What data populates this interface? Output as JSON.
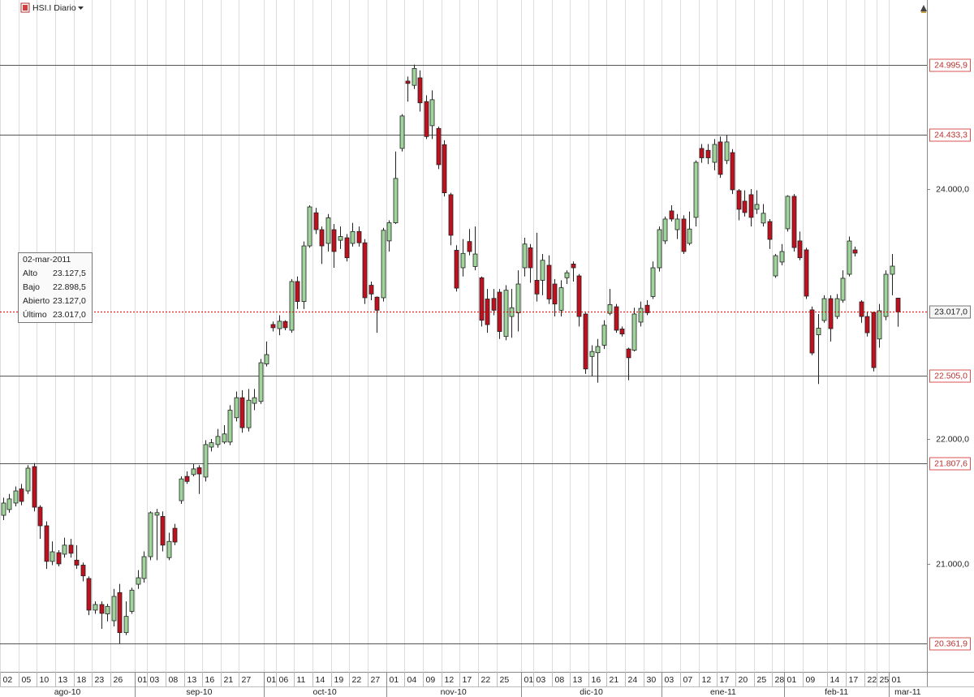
{
  "chart_data": {
    "type": "candlestick",
    "title": "HSI.I Diario",
    "categories": [
      "02",
      null,
      null,
      "05",
      null,
      null,
      "10",
      null,
      null,
      "13",
      null,
      null,
      "18",
      null,
      null,
      "23",
      null,
      null,
      "26",
      null,
      null,
      null,
      "01",
      null,
      "03",
      null,
      null,
      "08",
      null,
      null,
      "13",
      null,
      null,
      "16",
      null,
      null,
      "21",
      null,
      null,
      "27",
      null,
      null,
      null,
      "01",
      null,
      "06",
      null,
      null,
      "11",
      null,
      null,
      "14",
      null,
      null,
      "19",
      null,
      null,
      "22",
      null,
      null,
      "27",
      null,
      null,
      "01",
      null,
      null,
      "04",
      null,
      null,
      "09",
      null,
      null,
      "12",
      null,
      null,
      "17",
      null,
      null,
      "22",
      null,
      null,
      "25",
      null,
      null,
      null,
      "01",
      null,
      "03",
      null,
      null,
      "08",
      null,
      null,
      "13",
      null,
      null,
      "16",
      null,
      null,
      "21",
      null,
      null,
      "24",
      null,
      null,
      "30",
      null,
      null,
      "03",
      null,
      null,
      "07",
      null,
      null,
      "12",
      null,
      null,
      "17",
      null,
      null,
      "20",
      null,
      null,
      "25",
      null,
      null,
      "28",
      null,
      "01",
      null,
      null,
      "09",
      null,
      null,
      null,
      "14",
      null,
      null,
      "17",
      null,
      null,
      "22",
      null,
      "25",
      null,
      "01",
      null
    ],
    "months": [
      "ago-10",
      "sep-10",
      "oct-10",
      "nov-10",
      "dic-10",
      "ene-11",
      "feb-11",
      "mar-11"
    ],
    "open": [
      21389,
      21435,
      21487,
      21600,
      21584,
      21779,
      21454,
      21305,
      21020,
      21090,
      21078,
      21150,
      21030,
      20990,
      20883,
      20630,
      20675,
      20600,
      20545,
      20770,
      20450,
      20620,
      20837,
      20883,
      21058,
      21390,
      21380,
      21050,
      21285,
      21506,
      21700,
      21715,
      21770,
      21695,
      21935,
      21955,
      21975,
      21975,
      22170,
      22330,
      22090,
      22285,
      22300,
      22600,
      22916,
      22883,
      22940,
      22870,
      23260,
      23100,
      23545,
      23810,
      23675,
      23565,
      23675,
      23590,
      23610,
      23565,
      23660,
      23570,
      23230,
      23135,
      23130,
      23585,
      23730,
      24325,
      24864,
      24830,
      24890,
      24700,
      24507,
      24485,
      24355,
      23955,
      23510,
      23370,
      23580,
      23380,
      23290,
      23120,
      23125,
      23175,
      22820,
      22980,
      23010,
      23370,
      23530,
      23270,
      23270,
      23390,
      23240,
      23030,
      23290,
      23400,
      23305,
      23000,
      22660,
      22690,
      22750,
      23005,
      23058,
      22880,
      22720,
      22710,
      22935,
      23070,
      23140,
      23370,
      23585,
      23825,
      23675,
      23760,
      23565,
      23773,
      24325,
      24310,
      24214,
      24377,
      24228,
      24292,
      23987,
      23903,
      23955,
      23838,
      23728,
      23740,
      23305,
      23416,
      23682,
      23942,
      23585,
      23513,
      23033,
      22834,
      22948,
      23123,
      22980,
      23110,
      23318,
      23513,
      23097,
      22980,
      23013,
      22800,
      22980,
      23318,
      23127.0
    ],
    "high": [
      21530,
      21560,
      21620,
      21640,
      21790,
      21807.6,
      21470,
      21340,
      21180,
      21110,
      21210,
      21200,
      21150,
      21010,
      20900,
      20700,
      20700,
      20680,
      20800,
      20840,
      20700,
      20810,
      20950,
      21100,
      21420,
      21440,
      21420,
      21250,
      21320,
      21700,
      21740,
      21800,
      21790,
      21990,
      22000,
      22080,
      22110,
      22270,
      22380,
      22390,
      22400,
      22400,
      22640,
      22780,
      22940,
      22990,
      22950,
      23280,
      23300,
      23580,
      23870,
      23850,
      23700,
      23800,
      23720,
      23700,
      23640,
      23730,
      23700,
      23600,
      23260,
      23140,
      23690,
      23750,
      24300,
      24600,
      24900,
      24995.9,
      24950,
      24750,
      24790,
      24500,
      24390,
      23970,
      23550,
      23600,
      23680,
      23700,
      23300,
      23200,
      23200,
      23200,
      23230,
      23200,
      23350,
      23610,
      23560,
      23650,
      23480,
      23470,
      23280,
      23270,
      23350,
      23420,
      23320,
      23010,
      22750,
      22800,
      22950,
      23200,
      23080,
      22900,
      22730,
      23050,
      23100,
      23110,
      23420,
      23700,
      23780,
      23870,
      23800,
      23790,
      23820,
      24230,
      24360,
      24360,
      24400,
      24420,
      24433.3,
      24320,
      24000,
      23990,
      24000,
      23990,
      23880,
      23760,
      23480,
      23560,
      23950,
      23960,
      23660,
      23530,
      23060,
      23000,
      23150,
      23150,
      23160,
      23350,
      23620,
      23540,
      23110,
      23020,
      23020,
      23080,
      23350,
      23480,
      23127.5
    ],
    "low": [
      21350,
      21410,
      21460,
      21470,
      21560,
      21420,
      21200,
      20960,
      20990,
      20980,
      21050,
      21050,
      20960,
      20860,
      20590,
      20600,
      20480,
      20540,
      20500,
      20361.9,
      20430,
      20600,
      20800,
      20850,
      21030,
      21030,
      21100,
      21030,
      21150,
      21480,
      21640,
      21700,
      21560,
      21660,
      21900,
      21930,
      21960,
      21950,
      22140,
      22050,
      22060,
      22230,
      22280,
      22580,
      22860,
      22830,
      22870,
      22850,
      23040,
      23040,
      23530,
      23640,
      23400,
      23500,
      23370,
      23520,
      23420,
      23540,
      23540,
      23080,
      23110,
      22850,
      23100,
      23500,
      23720,
      24300,
      24700,
      24800,
      24620,
      24400,
      24400,
      24160,
      23940,
      23550,
      23180,
      23300,
      23470,
      23350,
      22900,
      22850,
      22990,
      22800,
      22790,
      22810,
      22860,
      23300,
      23250,
      23100,
      23150,
      23080,
      22980,
      22980,
      23240,
      23260,
      22900,
      22520,
      22500,
      22450,
      22720,
      22990,
      22850,
      22820,
      22470,
      22700,
      22900,
      22990,
      23120,
      23340,
      23560,
      23740,
      23600,
      23480,
      23550,
      23700,
      24210,
      24200,
      24150,
      24090,
      24200,
      23960,
      23750,
      23780,
      23700,
      23800,
      23700,
      23520,
      23290,
      23390,
      23660,
      23500,
      23430,
      23120,
      22670,
      22440,
      22930,
      22780,
      22960,
      23090,
      23300,
      23460,
      22930,
      22820,
      22540,
      22730,
      22950,
      23150,
      22898.5
    ],
    "close": [
      21487,
      21520,
      21584,
      21500,
      21766,
      21454,
      21305,
      21020,
      21097,
      21000,
      21150,
      21085,
      20990,
      20904,
      20630,
      20675,
      20604,
      20660,
      20740,
      20450,
      20580,
      20790,
      20889,
      21058,
      21409,
      21410,
      21150,
      21180,
      21175,
      21680,
      21660,
      21760,
      21720,
      21955,
      21970,
      22020,
      22040,
      22230,
      22330,
      22090,
      22310,
      22330,
      22610,
      22675,
      22890,
      22942,
      22890,
      23260,
      23100,
      23545,
      23857,
      23675,
      23545,
      23770,
      23500,
      23620,
      23450,
      23660,
      23570,
      23130,
      23160,
      23030,
      23670,
      23730,
      24085,
      24585,
      24845,
      24965,
      24690,
      24420,
      24715,
      24195,
      23970,
      23630,
      23207,
      23485,
      23500,
      23480,
      22950,
      22915,
      23030,
      22860,
      23190,
      23050,
      23240,
      23560,
      23370,
      23160,
      23430,
      23120,
      23080,
      23210,
      23330,
      23370,
      22980,
      22560,
      22700,
      22740,
      22910,
      23075,
      22870,
      22840,
      22650,
      23000,
      23045,
      23010,
      23370,
      23675,
      23760,
      23760,
      23760,
      23500,
      23680,
      24214,
      24250,
      24250,
      24357,
      24117,
      24377,
      23994,
      23838,
      23812,
      23773,
      23877,
      23806,
      23597,
      23467,
      23500,
      23942,
      23532,
      23450,
      23143,
      22688,
      22886,
      23123,
      22883,
      23123,
      23286,
      23584,
      23487,
      22980,
      22850,
      22571,
      23026,
      23318,
      23383,
      23017.0
    ],
    "last_label": "23.017,0",
    "up_color": "#9fd49a",
    "down_color": "#c0101e",
    "ylim": [
      20136,
      25513
    ],
    "yticks": [
      {
        "value": 21000,
        "label": "21.000,0"
      },
      {
        "value": 22000,
        "label": "22.000,0"
      },
      {
        "value": 24000,
        "label": "24.000,0"
      }
    ],
    "levels": [
      {
        "value": 24995.9,
        "label": "24.995,9"
      },
      {
        "value": 24433.3,
        "label": "24.433,3"
      },
      {
        "value": 22505.0,
        "label": "22.505,0"
      },
      {
        "value": 21807.6,
        "label": "21.807,6"
      },
      {
        "value": 20361.9,
        "label": "20.361,9"
      }
    ],
    "tooltip": {
      "date": "02-mar-2011",
      "rows": [
        [
          "Alto",
          "23.127,5"
        ],
        [
          "Bajo",
          "22.898,5"
        ],
        [
          "Abierto",
          "23.127,0"
        ],
        [
          "Último",
          "23.017,0"
        ]
      ]
    }
  }
}
